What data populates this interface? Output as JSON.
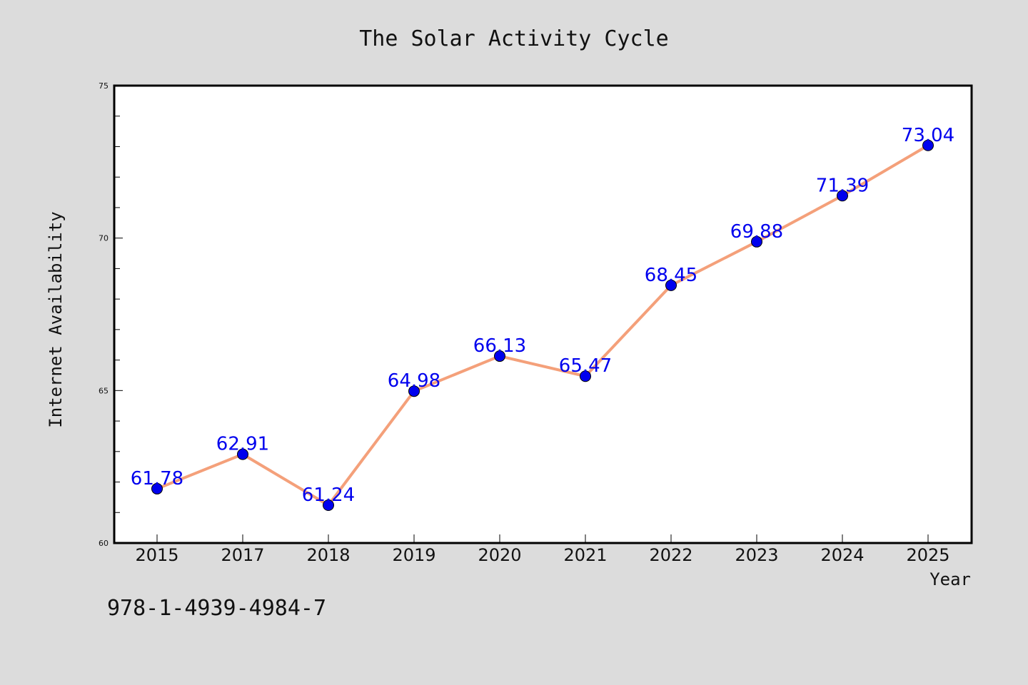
{
  "chart_data": {
    "type": "line",
    "title": "The Solar Activity Cycle",
    "xlabel": "Year",
    "ylabel": "Internet Availability",
    "categories": [
      "2015",
      "2017",
      "2018",
      "2019",
      "2020",
      "2021",
      "2022",
      "2023",
      "2024",
      "2025"
    ],
    "series": [
      {
        "values": [
          61.78,
          62.91,
          61.24,
          64.98,
          66.13,
          65.47,
          68.45,
          69.88,
          71.39,
          73.04
        ]
      }
    ],
    "data_labels": [
      "61.78",
      "62.91",
      "61.24",
      "64.98",
      "66.13",
      "65.47",
      "68.45",
      "69.88",
      "71.39",
      "73.04"
    ],
    "ylim": [
      60,
      75
    ],
    "yticks": [
      "60",
      "65",
      "70",
      "75"
    ],
    "grid": false,
    "line_color": "#f4a07a",
    "marker_color": "#0000ee",
    "label_color": "#0000ee",
    "background_color": "#dcdcdc",
    "plot_background_color": "#ffffff"
  },
  "footer": {
    "isbn": "978-1-4939-4984-7"
  }
}
